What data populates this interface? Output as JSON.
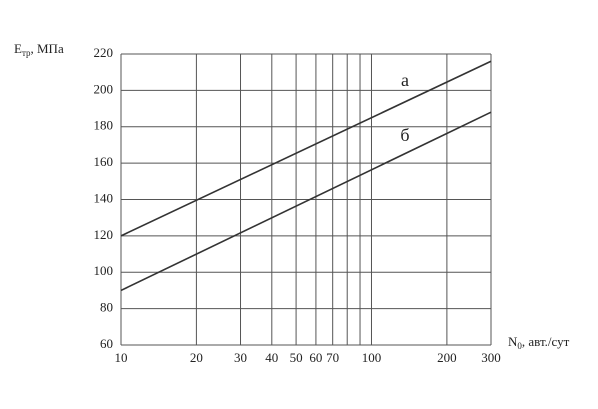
{
  "chart_data": {
    "type": "line",
    "ylabel": {
      "main": "E",
      "sub": "тр",
      "rest": ", МПа"
    },
    "xlabel": {
      "main": "N",
      "sub": "0",
      "rest": ", авт./сут"
    },
    "xscale": "log",
    "xlim": [
      10,
      300
    ],
    "ylim": [
      60,
      220
    ],
    "xticks": [
      10,
      20,
      30,
      40,
      50,
      60,
      70,
      {
        "value": 80,
        "label": null
      },
      {
        "value": 90,
        "label": null
      },
      100,
      200,
      300
    ],
    "yticks": [
      60,
      80,
      100,
      120,
      140,
      160,
      180,
      200,
      220
    ],
    "grid": true,
    "series": [
      {
        "name": "а",
        "color": "#333333",
        "x": [
          10,
          300
        ],
        "values": [
          120,
          216
        ]
      },
      {
        "name": "б",
        "color": "#333333",
        "x": [
          10,
          300
        ],
        "values": [
          90,
          188
        ]
      }
    ]
  }
}
